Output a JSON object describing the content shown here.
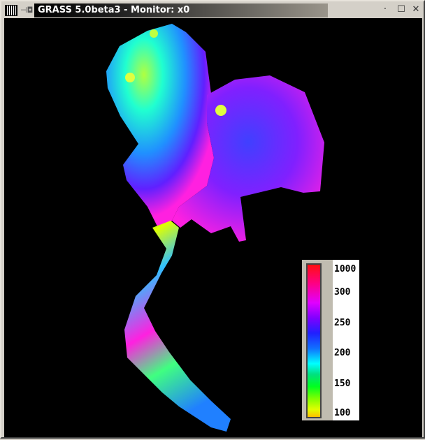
{
  "window": {
    "title": "GRASS 5.0beta3 - Monitor: x0",
    "icons": [
      "grass-app-icon",
      "pin-icon",
      "minimize-icon",
      "maximize-icon",
      "close-icon"
    ]
  },
  "legend": {
    "labels": [
      "1000",
      "300",
      "250",
      "200",
      "150",
      "100"
    ],
    "colors": [
      "#ff1010",
      "#ff0080",
      "#e000ff",
      "#8000ff",
      "#2020ff",
      "#1070ff",
      "#00ffff",
      "#00e080",
      "#00ff20",
      "#80ff00",
      "#e0ff00",
      "#ffc000"
    ]
  },
  "map": {
    "background": "#000000"
  }
}
